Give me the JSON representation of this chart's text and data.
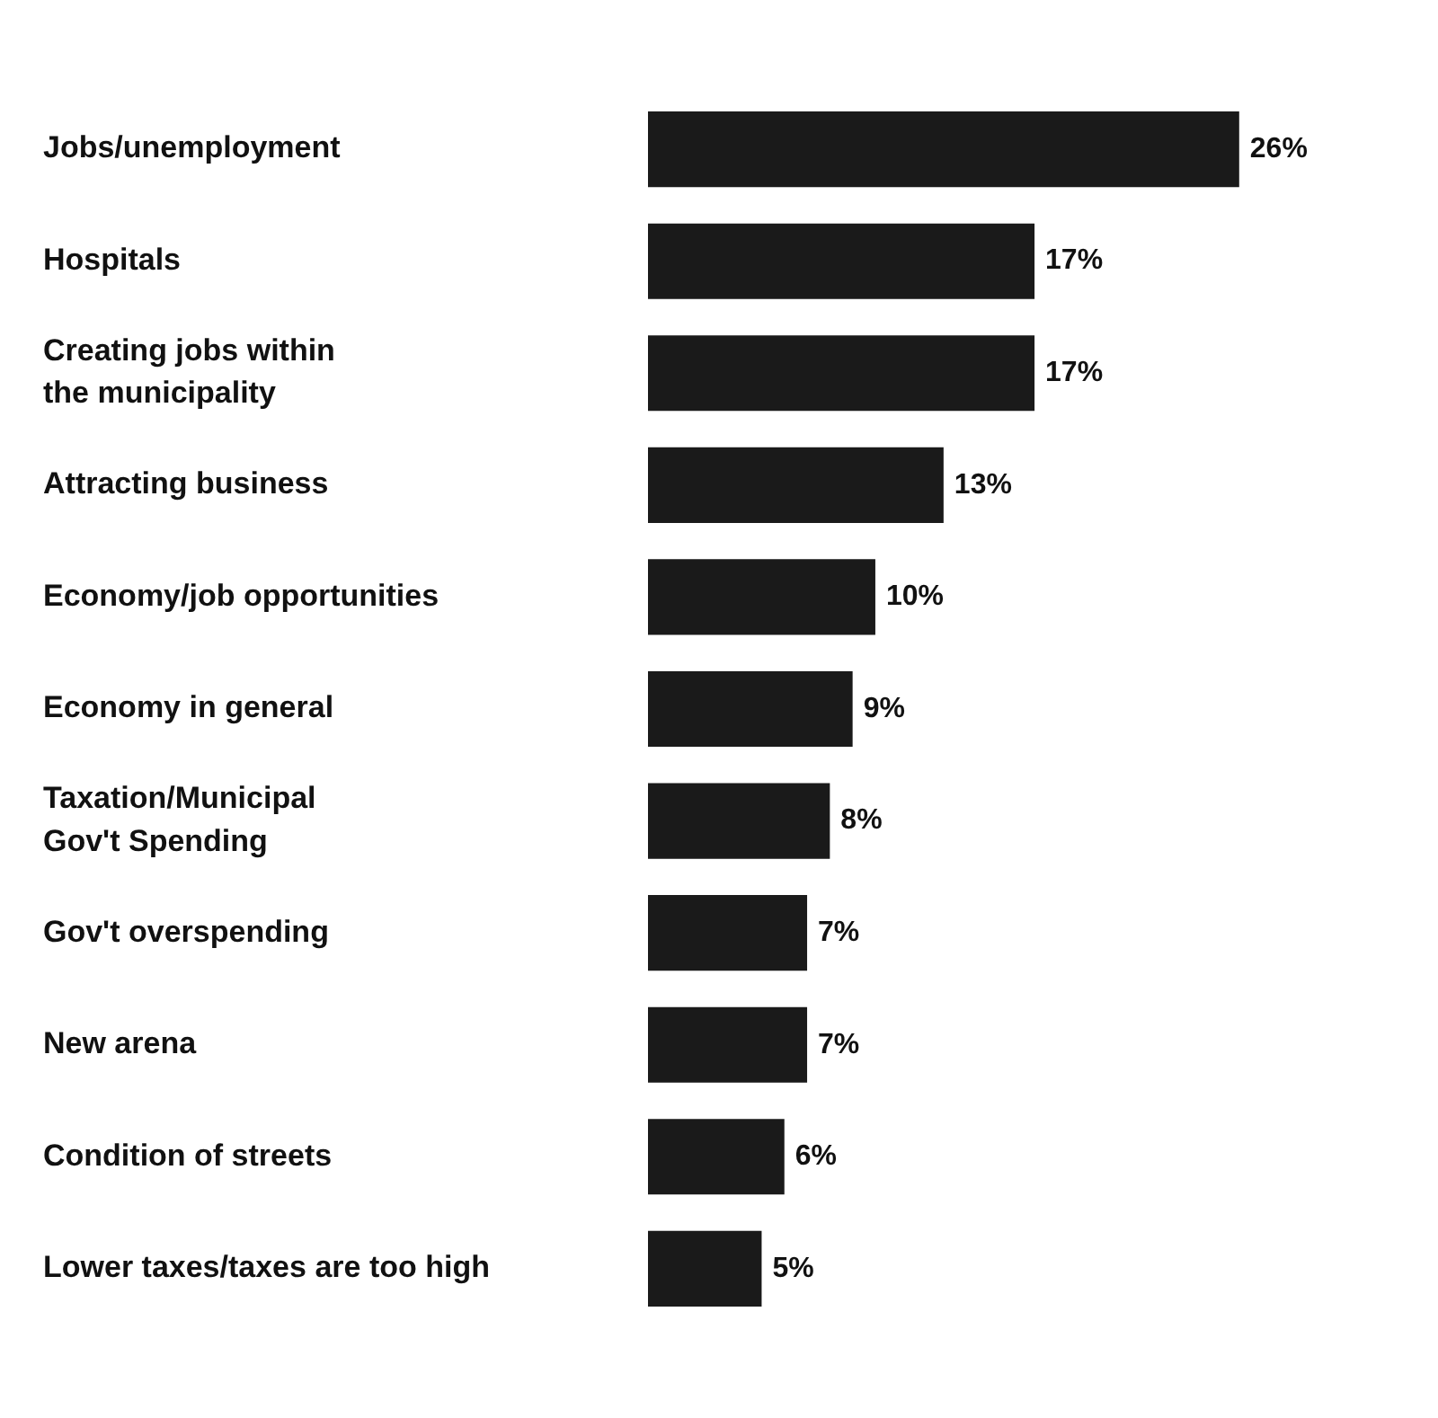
{
  "chart_data": {
    "type": "bar",
    "orientation": "horizontal",
    "categories": [
      "Jobs/unemployment",
      "Hospitals",
      "Creating jobs within\nthe municipality",
      "Attracting business",
      "Economy/job opportunities",
      "Economy in general",
      "Taxation/Municipal\nGov't Spending",
      "Gov't overspending",
      "New arena",
      "Condition of streets",
      "Lower taxes/taxes are too high"
    ],
    "values": [
      26,
      17,
      17,
      13,
      10,
      9,
      8,
      7,
      7,
      6,
      5
    ],
    "value_labels": [
      "26%",
      "17%",
      "17%",
      "13%",
      "10%",
      "9%",
      "8%",
      "7%",
      "7%",
      "6%",
      "5%"
    ],
    "color": "#1a1a1a",
    "legend": false
  }
}
